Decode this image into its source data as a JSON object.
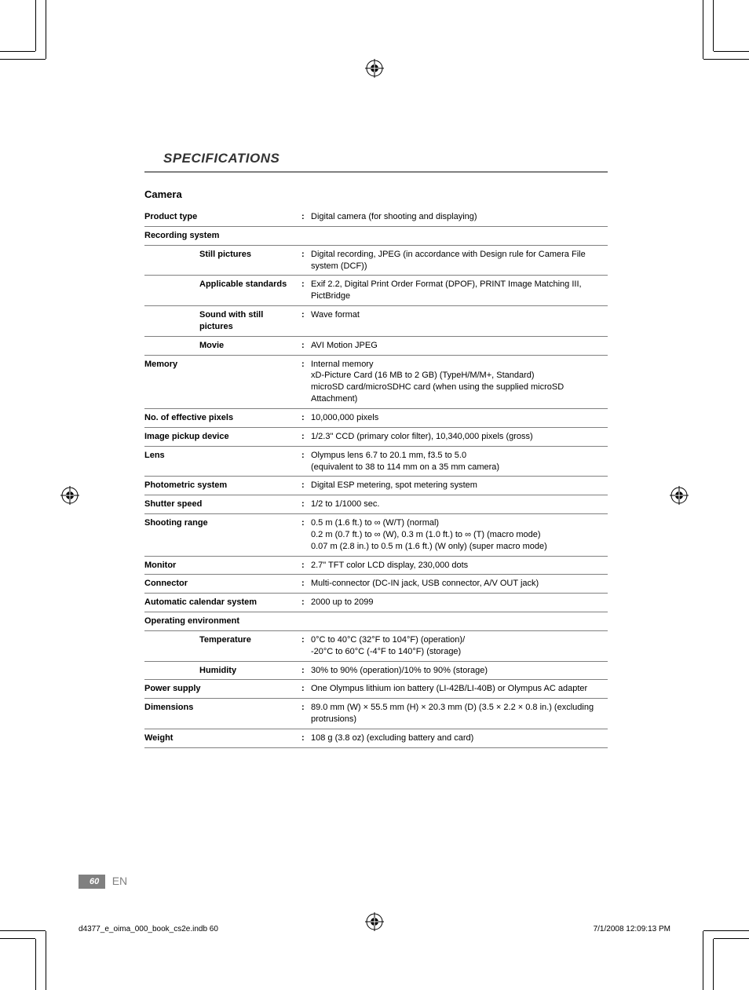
{
  "section_title": "SPECIFICATIONS",
  "category_title": "Camera",
  "rows": [
    {
      "label": "Product type",
      "sub": false,
      "value": "Digital camera (for shooting and displaying)"
    },
    {
      "label": "Recording system",
      "sub": false,
      "value": null,
      "header": true
    },
    {
      "label": "Still pictures",
      "sub": true,
      "value": "Digital recording, JPEG (in accordance with Design rule for Camera File system (DCF))"
    },
    {
      "label": "Applicable standards",
      "sub": true,
      "value": "Exif 2.2, Digital Print Order Format (DPOF), PRINT Image Matching III, PictBridge"
    },
    {
      "label": "Sound with still pictures",
      "sub": true,
      "value": "Wave format"
    },
    {
      "label": "Movie",
      "sub": true,
      "value": "AVI Motion JPEG"
    },
    {
      "label": "Memory",
      "sub": false,
      "value": "Internal memory\nxD-Picture Card (16 MB to 2 GB) (TypeH/M/M+, Standard)\nmicroSD card/microSDHC card (when using the supplied microSD Attachment)"
    },
    {
      "label": "No. of effective pixels",
      "sub": false,
      "value": "10,000,000 pixels"
    },
    {
      "label": "Image pickup device",
      "sub": false,
      "value": "1/2.3\" CCD (primary color filter), 10,340,000 pixels (gross)"
    },
    {
      "label": "Lens",
      "sub": false,
      "value": "Olympus lens 6.7 to 20.1 mm, f3.5 to 5.0\n(equivalent to 38 to 114 mm on a 35 mm camera)"
    },
    {
      "label": "Photometric system",
      "sub": false,
      "value": "Digital ESP metering, spot metering system"
    },
    {
      "label": "Shutter speed",
      "sub": false,
      "value": "1/2 to 1/1000 sec."
    },
    {
      "label": "Shooting range",
      "sub": false,
      "value": "0.5 m (1.6 ft.) to ∞ (W/T) (normal)\n0.2 m (0.7 ft.) to ∞ (W), 0.3 m (1.0 ft.) to ∞ (T) (macro mode)\n0.07 m (2.8 in.) to 0.5 m (1.6 ft.) (W only) (super macro mode)"
    },
    {
      "label": "Monitor",
      "sub": false,
      "value": "2.7\" TFT color LCD display, 230,000 dots"
    },
    {
      "label": "Connector",
      "sub": false,
      "value": "Multi-connector (DC-IN jack, USB connector, A/V OUT jack)"
    },
    {
      "label": "Automatic calendar system",
      "sub": false,
      "value": "2000 up to 2099"
    },
    {
      "label": "Operating environment",
      "sub": false,
      "value": null,
      "header": true
    },
    {
      "label": "Temperature",
      "sub": true,
      "value": "0°C to 40°C (32°F to 104°F) (operation)/\n-20°C to 60°C (-4°F to 140°F) (storage)"
    },
    {
      "label": "Humidity",
      "sub": true,
      "value": "30% to 90% (operation)/10% to 90% (storage)"
    },
    {
      "label": "Power supply",
      "sub": false,
      "value": "One Olympus lithium ion battery (LI-42B/LI-40B) or Olympus AC adapter"
    },
    {
      "label": "Dimensions",
      "sub": false,
      "value": "89.0 mm (W) × 55.5 mm (H) × 20.3 mm (D) (3.5 × 2.2 × 0.8 in.) (excluding protrusions)"
    },
    {
      "label": "Weight",
      "sub": false,
      "value": "108 g (3.8 oz) (excluding battery and card)"
    }
  ],
  "page_number": "60",
  "lang_code": "EN",
  "footer_file": "d4377_e_oima_000_book_cs2e.indb   60",
  "footer_time": "7/1/2008   12:09:13 PM",
  "colors": {
    "rule_gray": "#808080",
    "title_gray": "#333333",
    "tab_bg": "#808080"
  }
}
